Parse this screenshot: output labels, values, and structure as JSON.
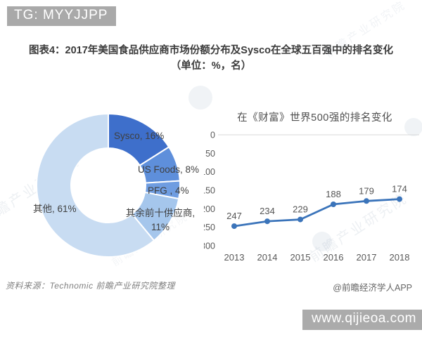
{
  "page": {
    "badge_top": "TG: MYYJJPP",
    "title": "图表4：2017年美国食品供应商市场份额分布及Sysco在全球五百强中的排名变化（单位：%，名）",
    "source": "资料来源：Technomic 前瞻产业研究院整理",
    "credit": "@前瞻经济学人APP",
    "badge_bottom": "www.qijieoa.com",
    "watermark": "前瞻产业研究院"
  },
  "chart_data": [
    {
      "type": "pie",
      "donut": true,
      "title": "2017年美国食品供应商市场份额分布",
      "unit": "%",
      "categories": [
        "Sysco",
        "US Foods",
        "PFG",
        "其余前十供应商",
        "其他"
      ],
      "values": [
        16,
        8,
        4,
        11,
        61
      ],
      "colors": [
        "#3e6fcb",
        "#5e8fdb",
        "#6f9de1",
        "#a5c6ec",
        "#c8dcf2"
      ],
      "display_labels": [
        "Sysco, 16%",
        "US Foods, 8%",
        "PFG , 4%",
        "其余前十供应商, 11%",
        "其他, 61%"
      ],
      "start_angle_deg": 0,
      "direction": "clockwise"
    },
    {
      "type": "line",
      "title": "在《财富》世界500强的排名变化",
      "x": [
        "2013",
        "2014",
        "2015",
        "2016",
        "2017",
        "2018"
      ],
      "values": [
        247,
        234,
        229,
        188,
        179,
        174
      ],
      "ylim": [
        0,
        300
      ],
      "yticks": [
        0,
        50,
        100,
        150,
        200,
        250,
        300
      ],
      "y_axis_reversed": true,
      "line_color": "#3b74ba",
      "label_color": "#555555",
      "axis_color": "#595959",
      "gridline_color": "#d9d9d9",
      "grid": "top-line-only",
      "data_labels": true,
      "legend": "none"
    }
  ]
}
